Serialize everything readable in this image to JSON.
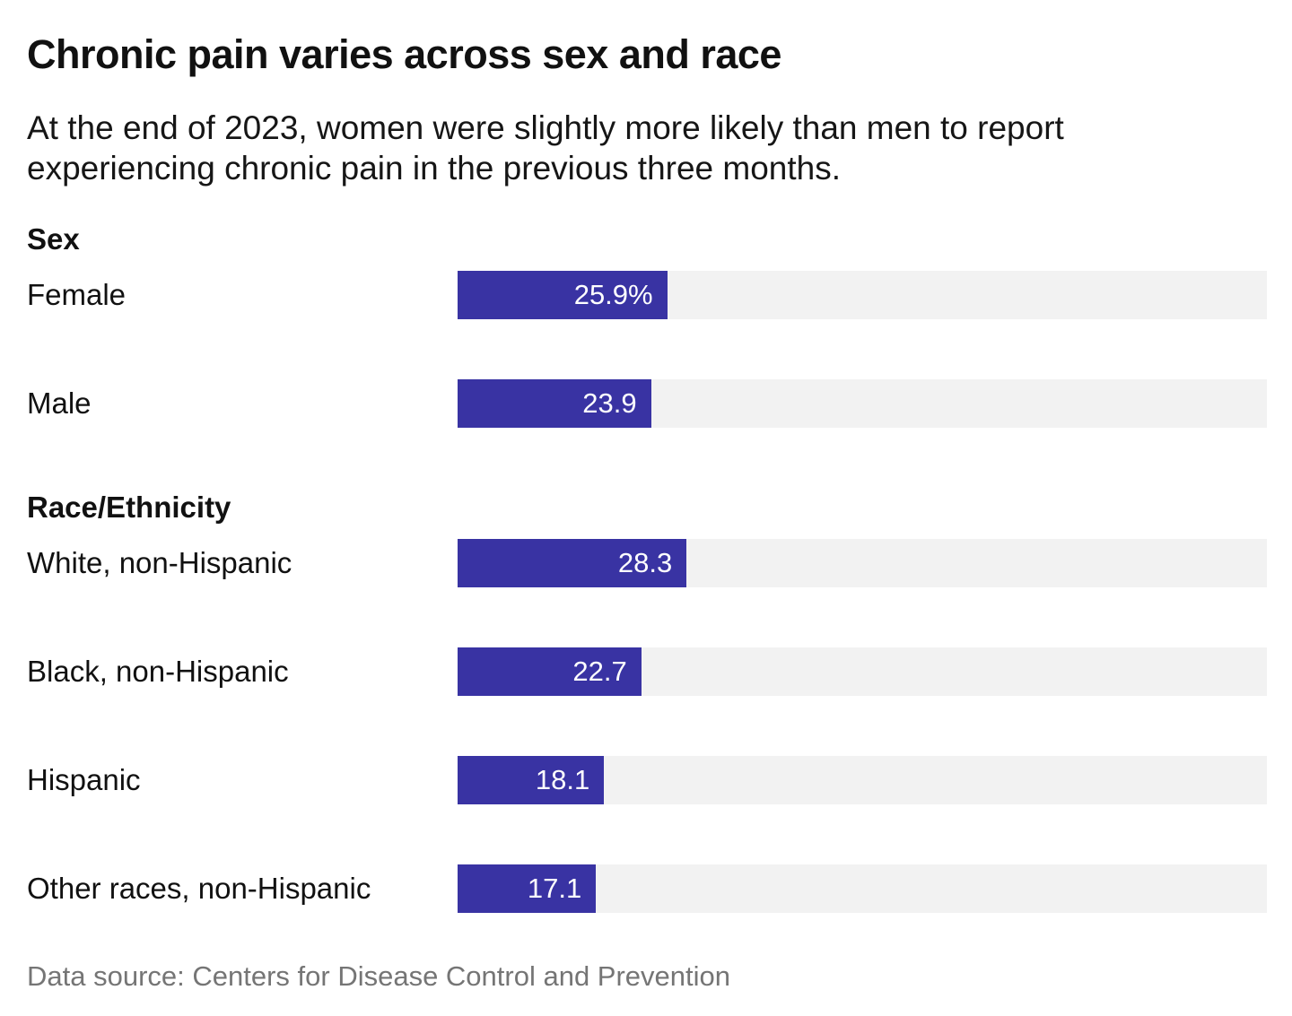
{
  "header": {
    "title": "Chronic pain varies across sex and race",
    "subtitle": "At the end of 2023, women were slightly more likely than men to report experiencing chronic pain in the previous three months."
  },
  "footer": {
    "source": "Data source: Centers for Disease Control and Prevention"
  },
  "colors": {
    "bar": "#3933a3",
    "track": "#f2f2f2",
    "value_text": "#ffffff",
    "footer_text": "#757575"
  },
  "chart_data": {
    "type": "bar",
    "orientation": "horizontal",
    "title": "Chronic pain varies across sex and race",
    "xlabel": "",
    "ylabel": "",
    "unit": "percent",
    "xlim": [
      0,
      100
    ],
    "grid": false,
    "legend": false,
    "groups": [
      {
        "label": "Sex",
        "rows": [
          {
            "label": "Female",
            "value": 25.9,
            "display": "25.9%"
          },
          {
            "label": "Male",
            "value": 23.9,
            "display": "23.9"
          }
        ]
      },
      {
        "label": "Race/Ethnicity",
        "rows": [
          {
            "label": "White, non-Hispanic",
            "value": 28.3,
            "display": "28.3"
          },
          {
            "label": "Black, non-Hispanic",
            "value": 22.7,
            "display": "22.7"
          },
          {
            "label": "Hispanic",
            "value": 18.1,
            "display": "18.1"
          },
          {
            "label": "Other races, non-Hispanic",
            "value": 17.1,
            "display": "17.1"
          }
        ]
      }
    ]
  }
}
